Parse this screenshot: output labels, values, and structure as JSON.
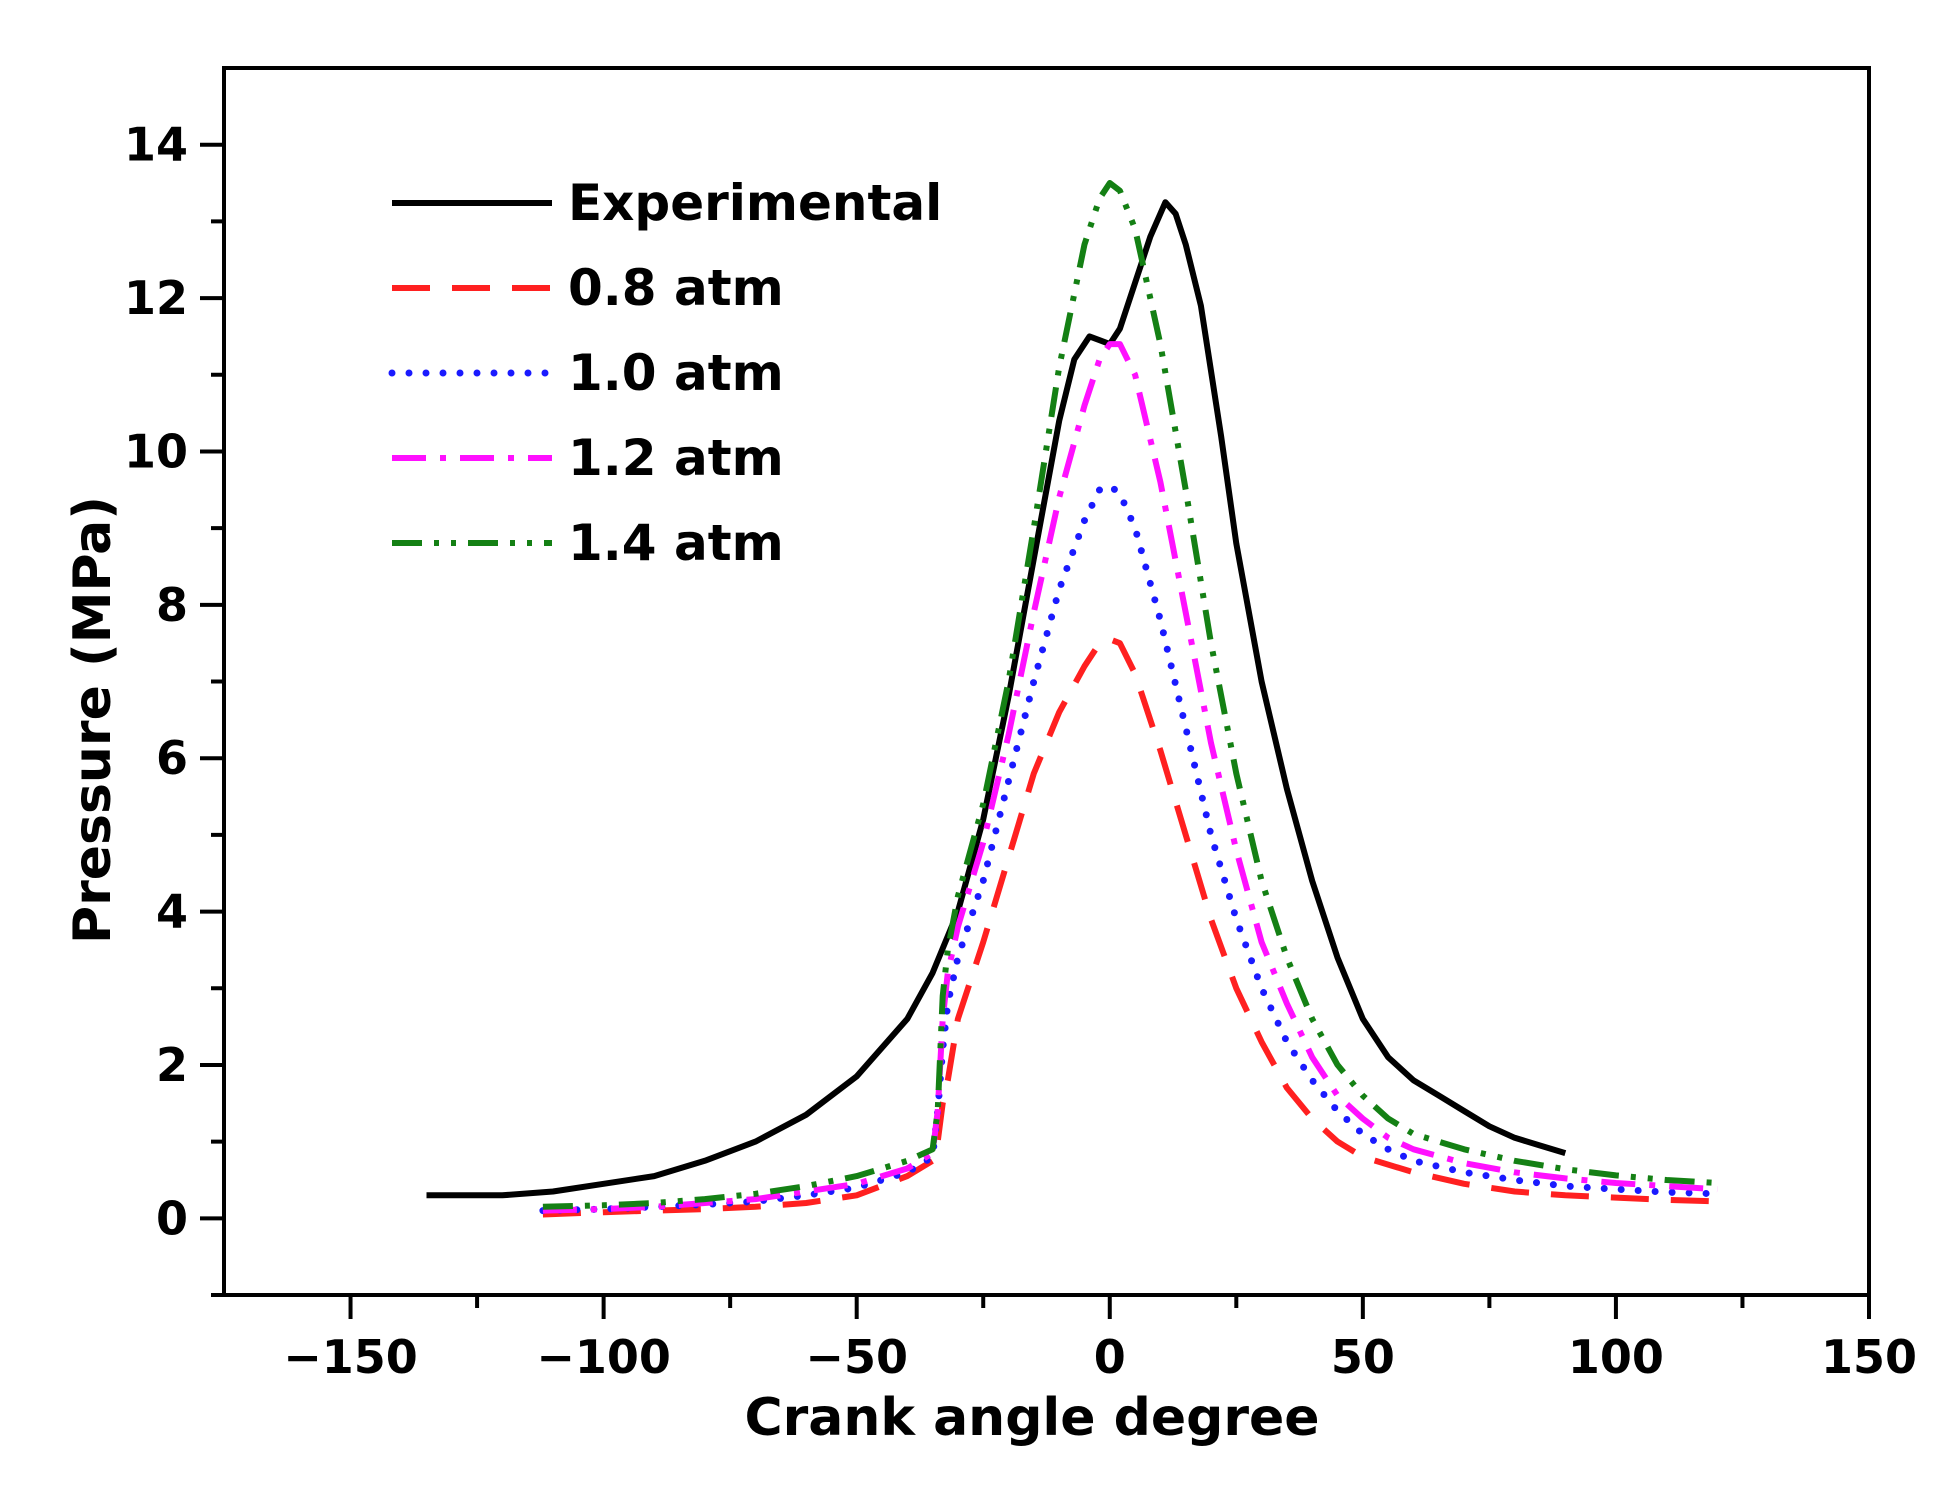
{
  "chart_data": {
    "type": "line",
    "title": "",
    "xlabel": "Crank angle degree",
    "ylabel": "Pressure (MPa)",
    "xlim": [
      -175,
      150
    ],
    "ylim": [
      -1,
      15
    ],
    "x_ticks": [
      -150,
      -100,
      -50,
      0,
      50,
      100,
      150
    ],
    "x_tick_labels": [
      "−150",
      "−100",
      "−50",
      "0",
      "50",
      "100",
      "150"
    ],
    "y_ticks": [
      0,
      2,
      4,
      6,
      8,
      10,
      12,
      14
    ],
    "y_tick_labels": [
      "0",
      "2",
      "4",
      "6",
      "8",
      "10",
      "12",
      "14"
    ],
    "grid": false,
    "legend_position": "top-left",
    "series": [
      {
        "name": "Experimental",
        "color": "#000000",
        "style": "solid",
        "x": [
          -135,
          -120,
          -110,
          -100,
          -90,
          -80,
          -70,
          -60,
          -50,
          -40,
          -35,
          -30,
          -25,
          -20,
          -15,
          -10,
          -7,
          -4,
          -2,
          0,
          2,
          5,
          8,
          11,
          13,
          15,
          18,
          22,
          25,
          30,
          35,
          40,
          45,
          50,
          55,
          60,
          65,
          70,
          75,
          80,
          85,
          90
        ],
        "y": [
          0.3,
          0.3,
          0.35,
          0.45,
          0.55,
          0.75,
          1.0,
          1.35,
          1.85,
          2.6,
          3.2,
          4.0,
          5.2,
          6.8,
          8.6,
          10.4,
          11.2,
          11.5,
          11.45,
          11.4,
          11.6,
          12.2,
          12.8,
          13.25,
          13.1,
          12.7,
          11.9,
          10.2,
          8.8,
          7.0,
          5.6,
          4.4,
          3.4,
          2.6,
          2.1,
          1.8,
          1.6,
          1.4,
          1.2,
          1.05,
          0.95,
          0.85
        ]
      },
      {
        "name": "0.8 atm",
        "color": "#ff2020",
        "style": "dashed",
        "x": [
          -112,
          -100,
          -90,
          -80,
          -70,
          -60,
          -50,
          -40,
          -35,
          -34,
          -33,
          -32,
          -30,
          -25,
          -20,
          -15,
          -10,
          -5,
          -2,
          0,
          2,
          5,
          10,
          15,
          20,
          25,
          30,
          35,
          40,
          45,
          50,
          55,
          60,
          70,
          80,
          90,
          100,
          110,
          120
        ],
        "y": [
          0.05,
          0.08,
          0.1,
          0.12,
          0.15,
          0.2,
          0.3,
          0.55,
          0.75,
          1.0,
          1.5,
          1.8,
          2.6,
          3.6,
          4.7,
          5.8,
          6.6,
          7.2,
          7.5,
          7.55,
          7.5,
          7.1,
          6.1,
          5.0,
          3.9,
          3.0,
          2.3,
          1.7,
          1.3,
          1.0,
          0.8,
          0.7,
          0.6,
          0.45,
          0.35,
          0.3,
          0.27,
          0.24,
          0.22
        ]
      },
      {
        "name": "1.0 atm",
        "color": "#1a1aff",
        "style": "dotted",
        "x": [
          -112,
          -100,
          -90,
          -80,
          -70,
          -60,
          -50,
          -40,
          -35,
          -34,
          -33,
          -32,
          -30,
          -25,
          -20,
          -15,
          -10,
          -5,
          -2,
          0,
          2,
          5,
          10,
          15,
          20,
          25,
          30,
          35,
          40,
          45,
          50,
          55,
          60,
          70,
          80,
          90,
          100,
          110,
          120
        ],
        "y": [
          0.1,
          0.12,
          0.15,
          0.18,
          0.22,
          0.3,
          0.4,
          0.6,
          0.8,
          1.4,
          2.2,
          2.8,
          3.4,
          4.4,
          5.7,
          7.0,
          8.2,
          9.1,
          9.5,
          9.55,
          9.45,
          9.0,
          7.8,
          6.4,
          5.0,
          3.9,
          3.0,
          2.3,
          1.8,
          1.4,
          1.1,
          0.9,
          0.75,
          0.6,
          0.5,
          0.42,
          0.38,
          0.34,
          0.32
        ]
      },
      {
        "name": "1.2 atm",
        "color": "#ff10ff",
        "style": "dash-dot",
        "x": [
          -112,
          -100,
          -90,
          -80,
          -70,
          -60,
          -50,
          -40,
          -35,
          -34,
          -33,
          -32,
          -30,
          -25,
          -20,
          -15,
          -10,
          -5,
          -2,
          0,
          2,
          5,
          10,
          15,
          20,
          25,
          30,
          35,
          40,
          45,
          50,
          55,
          60,
          70,
          80,
          90,
          100,
          110,
          120
        ],
        "y": [
          0.1,
          0.12,
          0.15,
          0.2,
          0.25,
          0.35,
          0.45,
          0.65,
          0.85,
          1.4,
          2.6,
          3.2,
          3.8,
          4.9,
          6.3,
          7.9,
          9.4,
          10.6,
          11.2,
          11.4,
          11.4,
          11.0,
          9.6,
          7.9,
          6.2,
          4.8,
          3.6,
          2.8,
          2.1,
          1.6,
          1.3,
          1.05,
          0.9,
          0.72,
          0.6,
          0.52,
          0.46,
          0.42,
          0.38
        ]
      },
      {
        "name": "1.4 atm",
        "color": "#148014",
        "style": "dash-dot-dot",
        "x": [
          -112,
          -100,
          -90,
          -80,
          -70,
          -60,
          -50,
          -40,
          -35,
          -34,
          -33,
          -32,
          -30,
          -25,
          -20,
          -15,
          -10,
          -5,
          -2,
          0,
          2,
          5,
          10,
          15,
          20,
          25,
          30,
          35,
          40,
          45,
          50,
          55,
          60,
          70,
          80,
          90,
          100,
          110,
          120
        ],
        "y": [
          0.15,
          0.17,
          0.2,
          0.25,
          0.32,
          0.42,
          0.55,
          0.75,
          0.9,
          1.4,
          2.9,
          3.5,
          4.2,
          5.4,
          7.0,
          9.0,
          11.1,
          12.7,
          13.3,
          13.5,
          13.4,
          12.9,
          11.4,
          9.5,
          7.5,
          5.8,
          4.4,
          3.4,
          2.6,
          2.0,
          1.6,
          1.3,
          1.1,
          0.9,
          0.75,
          0.64,
          0.56,
          0.5,
          0.46
        ]
      }
    ]
  }
}
